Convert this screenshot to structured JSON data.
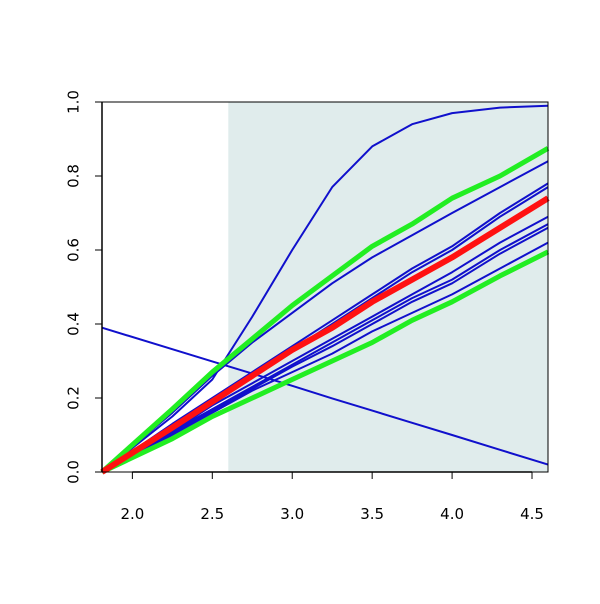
{
  "chart_data": {
    "type": "line",
    "x": [
      1.81,
      2.25,
      2.5,
      2.75,
      3.0,
      3.25,
      3.5,
      3.75,
      4.0,
      4.3,
      4.6
    ],
    "xlim": [
      1.81,
      4.6
    ],
    "ylim": [
      0,
      1
    ],
    "xticks": [
      {
        "value": 2,
        "label": "2.0"
      },
      2.5,
      {
        "value": 3,
        "label": "3.0"
      },
      3.5,
      {
        "value": 4,
        "label": "4.0"
      },
      4.5
    ],
    "yticks": [
      {
        "value": 0,
        "label": "0.0"
      },
      0.2,
      0.4,
      0.6,
      0.8,
      {
        "value": 1,
        "label": "1.0"
      }
    ],
    "shaded_xrange": [
      2.6,
      4.6
    ],
    "shade_color": "#e0ecec",
    "series": [
      {
        "color": "#1010cc",
        "width": 2,
        "values": [
          0.39,
          0.332,
          0.299,
          0.266,
          0.233,
          0.199,
          0.166,
          0.133,
          0.1,
          0.06,
          0.02
        ]
      },
      {
        "color": "#1010cc",
        "width": 2,
        "values": [
          0,
          0.15,
          0.25,
          0.42,
          0.6,
          0.77,
          0.88,
          0.94,
          0.97,
          0.985,
          0.99
        ]
      },
      {
        "color": "#1010cc",
        "width": 2,
        "values": [
          0,
          0.16,
          0.26,
          0.35,
          0.43,
          0.51,
          0.58,
          0.64,
          0.7,
          0.77,
          0.84
        ]
      },
      {
        "color": "#1010cc",
        "width": 2,
        "values": [
          0,
          0.13,
          0.2,
          0.27,
          0.34,
          0.41,
          0.48,
          0.55,
          0.61,
          0.7,
          0.78
        ]
      },
      {
        "color": "#1010cc",
        "width": 2,
        "values": [
          0,
          0.12,
          0.19,
          0.26,
          0.33,
          0.4,
          0.47,
          0.54,
          0.6,
          0.69,
          0.77
        ]
      },
      {
        "color": "#1010cc",
        "width": 2,
        "values": [
          0,
          0.11,
          0.18,
          0.24,
          0.3,
          0.36,
          0.42,
          0.48,
          0.54,
          0.62,
          0.69
        ]
      },
      {
        "color": "#1010cc",
        "width": 2,
        "values": [
          0,
          0.11,
          0.17,
          0.23,
          0.29,
          0.35,
          0.41,
          0.47,
          0.52,
          0.6,
          0.67
        ]
      },
      {
        "color": "#1010cc",
        "width": 2,
        "values": [
          0,
          0.105,
          0.165,
          0.225,
          0.285,
          0.34,
          0.4,
          0.46,
          0.51,
          0.59,
          0.66
        ]
      },
      {
        "color": "#1010cc",
        "width": 2,
        "values": [
          0,
          0.1,
          0.16,
          0.22,
          0.27,
          0.32,
          0.38,
          0.43,
          0.48,
          0.55,
          0.62
        ]
      },
      {
        "color": "#22ee22",
        "width": 5,
        "values": [
          0,
          0.17,
          0.27,
          0.36,
          0.45,
          0.53,
          0.61,
          0.67,
          0.74,
          0.8,
          0.875
        ]
      },
      {
        "color": "#22ee22",
        "width": 5,
        "values": [
          0,
          0.09,
          0.15,
          0.2,
          0.25,
          0.3,
          0.35,
          0.41,
          0.46,
          0.53,
          0.595
        ]
      },
      {
        "color": "#ff1111",
        "width": 6,
        "values": [
          0,
          0.12,
          0.19,
          0.26,
          0.33,
          0.39,
          0.46,
          0.52,
          0.58,
          0.66,
          0.74
        ]
      }
    ]
  }
}
